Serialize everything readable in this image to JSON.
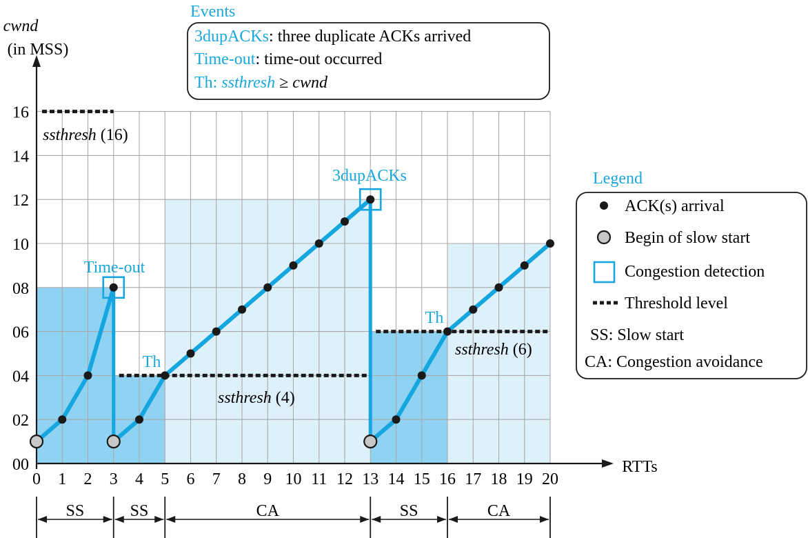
{
  "axes": {
    "y_label": "cwnd",
    "y_unit": "(in MSS)",
    "x_label": "RTTs",
    "y_ticks": [
      "00",
      "02",
      "04",
      "06",
      "08",
      "10",
      "12",
      "14",
      "16"
    ],
    "x_ticks": [
      "0",
      "1",
      "2",
      "3",
      "4",
      "5",
      "6",
      "7",
      "8",
      "9",
      "10",
      "11",
      "12",
      "13",
      "14",
      "15",
      "16",
      "17",
      "18",
      "19",
      "20"
    ]
  },
  "events_box": {
    "title": "Events",
    "items": [
      {
        "term": "3dupACKs",
        "sep": ":",
        "text": "three duplicate ACKs arrived"
      },
      {
        "term": "Time-out",
        "sep": ":",
        "text": "time-out occurred"
      },
      {
        "term": "Th:",
        "sep": "",
        "text_italic_1": "ssthresh",
        "symbol": "≥",
        "text_italic_2": "cwnd"
      }
    ]
  },
  "legend": {
    "title": "Legend",
    "items": [
      {
        "symbol": "dot",
        "label": "ACK(s) arrival"
      },
      {
        "symbol": "ring",
        "label": "Begin of slow start"
      },
      {
        "symbol": "square",
        "label": "Congestion detection"
      },
      {
        "symbol": "dashes",
        "label": "Threshold level"
      },
      {
        "symbol": "SS:",
        "label": "Slow start"
      },
      {
        "symbol": "CA:",
        "label": "Congestion avoidance"
      }
    ]
  },
  "annotations": {
    "timeout": "Time-out",
    "dupacks": "3dupACKs",
    "th1": "Th",
    "th2": "Th",
    "ssthresh_word": "ssthresh",
    "ssthresh16": "(16)",
    "ssthresh4": "(4)",
    "ssthresh6": "(6)"
  },
  "phases": [
    {
      "label": "SS",
      "from": 0,
      "to": 3
    },
    {
      "label": "SS",
      "from": 3,
      "to": 5
    },
    {
      "label": "CA",
      "from": 5,
      "to": 13
    },
    {
      "label": "SS",
      "from": 13,
      "to": 16
    },
    {
      "label": "CA",
      "from": 16,
      "to": 20
    }
  ],
  "chart_data": {
    "type": "line",
    "xlabel": "RTTs",
    "ylabel": "cwnd",
    "xlim": [
      0,
      20
    ],
    "ylim": [
      0,
      16
    ],
    "series": [
      {
        "points": [
          [
            0,
            1
          ],
          [
            1,
            2
          ],
          [
            2,
            4
          ],
          [
            3,
            8
          ]
        ]
      },
      {
        "points": [
          [
            3,
            1
          ],
          [
            4,
            2
          ],
          [
            5,
            4
          ],
          [
            6,
            5
          ],
          [
            7,
            6
          ],
          [
            8,
            7
          ],
          [
            9,
            8
          ],
          [
            10,
            9
          ],
          [
            11,
            10
          ],
          [
            12,
            11
          ],
          [
            13,
            12
          ]
        ]
      },
      {
        "points": [
          [
            13,
            1
          ],
          [
            14,
            2
          ],
          [
            15,
            4
          ],
          [
            16,
            6
          ],
          [
            17,
            7
          ],
          [
            18,
            8
          ],
          [
            19,
            9
          ],
          [
            20,
            10
          ]
        ]
      }
    ],
    "drops": [
      [
        3,
        8,
        1
      ],
      [
        13,
        12,
        1
      ]
    ],
    "slow_start_begins": [
      [
        0,
        1
      ],
      [
        3,
        1
      ],
      [
        13,
        1
      ]
    ],
    "congestion_detections": [
      [
        3,
        8
      ],
      [
        13,
        12
      ]
    ],
    "thresholds": [
      {
        "value": 16,
        "from": 0,
        "to": 3
      },
      {
        "value": 4,
        "from": 3,
        "to": 13
      },
      {
        "value": 6,
        "from": 13,
        "to": 20
      }
    ],
    "shaded_regions": [
      {
        "from": 0,
        "to": 3,
        "height": 8,
        "shade": "dark"
      },
      {
        "from": 3,
        "to": 5,
        "height": 4,
        "shade": "dark"
      },
      {
        "from": 5,
        "to": 13,
        "height": 12,
        "shade": "light"
      },
      {
        "from": 13,
        "to": 16,
        "height": 6,
        "shade": "dark"
      },
      {
        "from": 16,
        "to": 20,
        "height": 10,
        "shade": "light"
      }
    ],
    "colors": {
      "line": "#16a6df",
      "dark_fill": "#8fd2f2",
      "light_fill": "#def1fb",
      "grid": "#a9a9a9",
      "point": "#1a1a1a",
      "ring_fill": "#c8c8c8"
    }
  }
}
